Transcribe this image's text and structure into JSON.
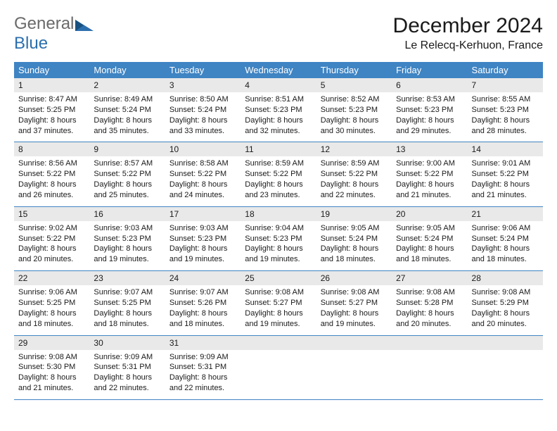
{
  "logo": {
    "text1": "General",
    "text2": "Blue"
  },
  "title": "December 2024",
  "subtitle": "Le Relecq-Kerhuon, France",
  "colors": {
    "header_bg": "#3f84c3",
    "header_text": "#ffffff",
    "daynum_bg": "#e9e9e9",
    "rule": "#3f84c3",
    "logo_gray": "#6a6a6a",
    "logo_blue": "#2c6fae"
  },
  "typography": {
    "title_fontsize": 30,
    "subtitle_fontsize": 16,
    "header_row_fontsize": 13,
    "daynum_fontsize": 12,
    "body_fontsize": 11
  },
  "day_headers": [
    "Sunday",
    "Monday",
    "Tuesday",
    "Wednesday",
    "Thursday",
    "Friday",
    "Saturday"
  ],
  "weeks": [
    [
      {
        "num": "1",
        "sunrise": "8:47 AM",
        "sunset": "5:25 PM",
        "day_h": 8,
        "day_m": 37
      },
      {
        "num": "2",
        "sunrise": "8:49 AM",
        "sunset": "5:24 PM",
        "day_h": 8,
        "day_m": 35
      },
      {
        "num": "3",
        "sunrise": "8:50 AM",
        "sunset": "5:24 PM",
        "day_h": 8,
        "day_m": 33
      },
      {
        "num": "4",
        "sunrise": "8:51 AM",
        "sunset": "5:23 PM",
        "day_h": 8,
        "day_m": 32
      },
      {
        "num": "5",
        "sunrise": "8:52 AM",
        "sunset": "5:23 PM",
        "day_h": 8,
        "day_m": 30
      },
      {
        "num": "6",
        "sunrise": "8:53 AM",
        "sunset": "5:23 PM",
        "day_h": 8,
        "day_m": 29
      },
      {
        "num": "7",
        "sunrise": "8:55 AM",
        "sunset": "5:23 PM",
        "day_h": 8,
        "day_m": 28
      }
    ],
    [
      {
        "num": "8",
        "sunrise": "8:56 AM",
        "sunset": "5:22 PM",
        "day_h": 8,
        "day_m": 26
      },
      {
        "num": "9",
        "sunrise": "8:57 AM",
        "sunset": "5:22 PM",
        "day_h": 8,
        "day_m": 25
      },
      {
        "num": "10",
        "sunrise": "8:58 AM",
        "sunset": "5:22 PM",
        "day_h": 8,
        "day_m": 24
      },
      {
        "num": "11",
        "sunrise": "8:59 AM",
        "sunset": "5:22 PM",
        "day_h": 8,
        "day_m": 23
      },
      {
        "num": "12",
        "sunrise": "8:59 AM",
        "sunset": "5:22 PM",
        "day_h": 8,
        "day_m": 22
      },
      {
        "num": "13",
        "sunrise": "9:00 AM",
        "sunset": "5:22 PM",
        "day_h": 8,
        "day_m": 21
      },
      {
        "num": "14",
        "sunrise": "9:01 AM",
        "sunset": "5:22 PM",
        "day_h": 8,
        "day_m": 21
      }
    ],
    [
      {
        "num": "15",
        "sunrise": "9:02 AM",
        "sunset": "5:22 PM",
        "day_h": 8,
        "day_m": 20
      },
      {
        "num": "16",
        "sunrise": "9:03 AM",
        "sunset": "5:23 PM",
        "day_h": 8,
        "day_m": 19
      },
      {
        "num": "17",
        "sunrise": "9:03 AM",
        "sunset": "5:23 PM",
        "day_h": 8,
        "day_m": 19
      },
      {
        "num": "18",
        "sunrise": "9:04 AM",
        "sunset": "5:23 PM",
        "day_h": 8,
        "day_m": 19
      },
      {
        "num": "19",
        "sunrise": "9:05 AM",
        "sunset": "5:24 PM",
        "day_h": 8,
        "day_m": 18
      },
      {
        "num": "20",
        "sunrise": "9:05 AM",
        "sunset": "5:24 PM",
        "day_h": 8,
        "day_m": 18
      },
      {
        "num": "21",
        "sunrise": "9:06 AM",
        "sunset": "5:24 PM",
        "day_h": 8,
        "day_m": 18
      }
    ],
    [
      {
        "num": "22",
        "sunrise": "9:06 AM",
        "sunset": "5:25 PM",
        "day_h": 8,
        "day_m": 18
      },
      {
        "num": "23",
        "sunrise": "9:07 AM",
        "sunset": "5:25 PM",
        "day_h": 8,
        "day_m": 18
      },
      {
        "num": "24",
        "sunrise": "9:07 AM",
        "sunset": "5:26 PM",
        "day_h": 8,
        "day_m": 18
      },
      {
        "num": "25",
        "sunrise": "9:08 AM",
        "sunset": "5:27 PM",
        "day_h": 8,
        "day_m": 19
      },
      {
        "num": "26",
        "sunrise": "9:08 AM",
        "sunset": "5:27 PM",
        "day_h": 8,
        "day_m": 19
      },
      {
        "num": "27",
        "sunrise": "9:08 AM",
        "sunset": "5:28 PM",
        "day_h": 8,
        "day_m": 20
      },
      {
        "num": "28",
        "sunrise": "9:08 AM",
        "sunset": "5:29 PM",
        "day_h": 8,
        "day_m": 20
      }
    ],
    [
      {
        "num": "29",
        "sunrise": "9:08 AM",
        "sunset": "5:30 PM",
        "day_h": 8,
        "day_m": 21
      },
      {
        "num": "30",
        "sunrise": "9:09 AM",
        "sunset": "5:31 PM",
        "day_h": 8,
        "day_m": 22
      },
      {
        "num": "31",
        "sunrise": "9:09 AM",
        "sunset": "5:31 PM",
        "day_h": 8,
        "day_m": 22
      },
      null,
      null,
      null,
      null
    ]
  ]
}
